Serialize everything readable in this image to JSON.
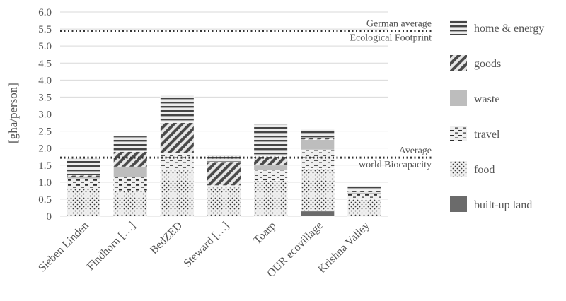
{
  "chart_data": {
    "type": "bar",
    "stacked": true,
    "ylabel": "[gha/person]",
    "ylim": [
      0,
      6.0
    ],
    "ytick_step": 0.5,
    "ytick_labels": [
      "0",
      "0.5",
      "1.0",
      "1.5",
      "2.0",
      "2.5",
      "3.0",
      "3.5",
      "4.0",
      "4.5",
      "5.0",
      "5.5",
      "6.0"
    ],
    "grid": true,
    "legend_position": "right",
    "categories": [
      "Sieben Linden",
      "Findhorn […]",
      "BedZED",
      "Steward […]",
      "Toarp",
      "OUR ecovillage",
      "Krishna Valley"
    ],
    "series": [
      {
        "name": "built-up land",
        "pattern": "solid-dark",
        "values": [
          0.0,
          0.0,
          0.0,
          0.0,
          0.0,
          0.15,
          0.0
        ]
      },
      {
        "name": "food",
        "pattern": "dots",
        "values": [
          0.8,
          0.75,
          1.35,
          0.85,
          1.05,
          1.25,
          0.5
        ]
      },
      {
        "name": "travel",
        "pattern": "dashes",
        "values": [
          0.3,
          0.4,
          0.5,
          0.05,
          0.3,
          0.55,
          0.15
        ]
      },
      {
        "name": "waste",
        "pattern": "solid-light",
        "values": [
          0.05,
          0.3,
          0.0,
          0.0,
          0.15,
          0.3,
          0.05
        ]
      },
      {
        "name": "goods",
        "pattern": "diagonal",
        "values": [
          0.05,
          0.45,
          0.9,
          0.7,
          0.25,
          0.05,
          0.05
        ]
      },
      {
        "name": "home & energy",
        "pattern": "horizontal",
        "values": [
          0.5,
          0.45,
          0.8,
          0.2,
          0.95,
          0.25,
          0.15
        ]
      }
    ],
    "legend_order": [
      "home & energy",
      "goods",
      "waste",
      "travel",
      "food",
      "built-up land"
    ],
    "reference_lines": [
      {
        "value": 5.45,
        "label_lines": [
          "German average",
          "Ecological Footprint"
        ]
      },
      {
        "value": 1.72,
        "label_lines": [
          "Average",
          "world Biocapacity"
        ]
      }
    ]
  },
  "colors": {
    "built_up": "#6b6b6b",
    "waste": "#bdbdbd",
    "pattern_dark": "#4a4a4a",
    "pattern_light": "#e6e6e6",
    "grid": "#d9d9d9",
    "text": "#555555",
    "reference_line": "#333333"
  }
}
